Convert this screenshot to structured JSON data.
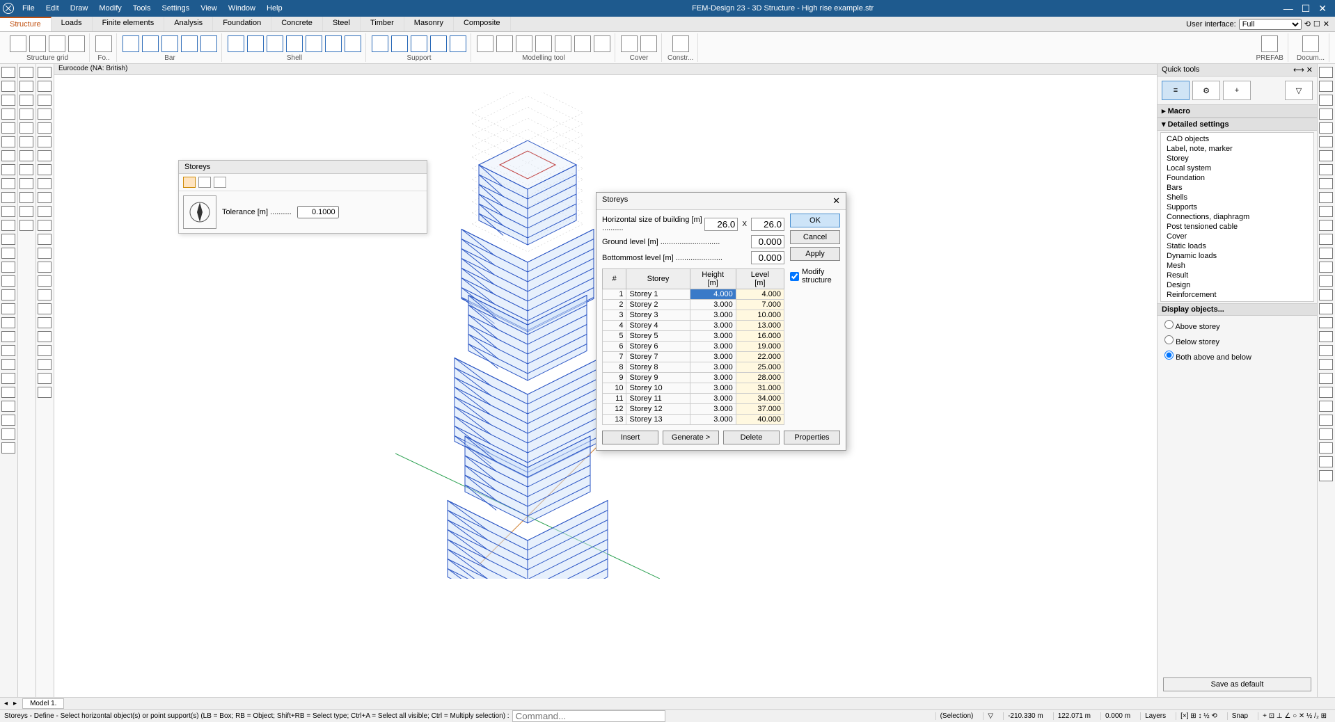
{
  "app": {
    "title": "FEM-Design 23 - 3D Structure - High rise example.str",
    "menus": [
      "File",
      "Edit",
      "Draw",
      "Modify",
      "Tools",
      "Settings",
      "View",
      "Window",
      "Help"
    ],
    "userInterfaceLabel": "User interface:",
    "userInterfaceValue": "Full"
  },
  "tabs": [
    "Structure",
    "Loads",
    "Finite elements",
    "Analysis",
    "Foundation",
    "Concrete",
    "Steel",
    "Timber",
    "Masonry",
    "Composite"
  ],
  "activeTab": "Structure",
  "ribbon": {
    "groups": [
      "Structure grid",
      "Fo..",
      "Bar",
      "Shell",
      "Support",
      "Modelling tool",
      "Cover",
      "Constr..."
    ],
    "rightLabels": [
      "PREFAB",
      "Docum..."
    ]
  },
  "canvas": {
    "codeHeader": "Eurocode (NA: British)"
  },
  "tolerancePanel": {
    "title": "Storeys",
    "label": "Tolerance [m] ..........",
    "value": "0.1000"
  },
  "dialog": {
    "title": "Storeys",
    "hSizeLabel": "Horizontal size of building [m] ..........",
    "hSizeX": "26.0",
    "xLabel": "X",
    "hSizeY": "26.0",
    "groundLabel": "Ground level [m] ............................",
    "groundValue": "0.000",
    "bottomLabel": "Bottommost level [m] ......................",
    "bottomValue": "0.000",
    "okLabel": "OK",
    "cancelLabel": "Cancel",
    "applyLabel": "Apply",
    "modifyLabel": "Modify structure",
    "modifyChecked": true,
    "cols": {
      "num": "#",
      "storey": "Storey",
      "height": "Height\n[m]",
      "level": "Level\n[m]"
    },
    "rows": [
      {
        "n": 1,
        "name": "Storey 1",
        "h": "4.000",
        "l": "4.000",
        "edit": true
      },
      {
        "n": 2,
        "name": "Storey 2",
        "h": "3.000",
        "l": "7.000"
      },
      {
        "n": 3,
        "name": "Storey 3",
        "h": "3.000",
        "l": "10.000"
      },
      {
        "n": 4,
        "name": "Storey 4",
        "h": "3.000",
        "l": "13.000"
      },
      {
        "n": 5,
        "name": "Storey 5",
        "h": "3.000",
        "l": "16.000"
      },
      {
        "n": 6,
        "name": "Storey 6",
        "h": "3.000",
        "l": "19.000"
      },
      {
        "n": 7,
        "name": "Storey 7",
        "h": "3.000",
        "l": "22.000"
      },
      {
        "n": 8,
        "name": "Storey 8",
        "h": "3.000",
        "l": "25.000"
      },
      {
        "n": 9,
        "name": "Storey 9",
        "h": "3.000",
        "l": "28.000"
      },
      {
        "n": 10,
        "name": "Storey 10",
        "h": "3.000",
        "l": "31.000"
      },
      {
        "n": 11,
        "name": "Storey 11",
        "h": "3.000",
        "l": "34.000"
      },
      {
        "n": 12,
        "name": "Storey 12",
        "h": "3.000",
        "l": "37.000"
      },
      {
        "n": 13,
        "name": "Storey 13",
        "h": "3.000",
        "l": "40.000"
      }
    ],
    "insertLabel": "Insert",
    "generateLabel": "Generate >",
    "deleteLabel": "Delete",
    "propsLabel": "Properties"
  },
  "quickTools": {
    "title": "Quick tools",
    "macro": "Macro",
    "detailed": "Detailed settings",
    "list": [
      "CAD objects",
      "Label, note, marker",
      "Storey",
      "Local system",
      "Foundation",
      "Bars",
      "Shells",
      "Supports",
      "Connections, diaphragm",
      "Post tensioned cable",
      "Cover",
      "Static loads",
      "Dynamic loads",
      "Mesh",
      "Result",
      "Design",
      "Reinforcement"
    ],
    "displayLabel": "Display objects...",
    "radios": {
      "above": "Above storey",
      "below": "Below storey",
      "both": "Both above and below"
    },
    "selected": "both",
    "saveDefault": "Save as default"
  },
  "sheetTab": "Model 1.",
  "status": {
    "hint": "Storeys - Define - Select horizontal object(s) or point support(s) (LB = Box; RB = Object; Shift+RB = Select type; Ctrl+A = Select all visible; Ctrl = Multiply selection) :",
    "cmdPlaceholder": "Command...",
    "selection": "(Selection)",
    "coord1": "-210.330 m",
    "coord2": "122.071 m",
    "coord3": "0.000 m",
    "layers": "Layers",
    "snap": "Snap"
  },
  "colors": {
    "titlebar": "#1e5a8e",
    "activeTabAccent": "#c05010",
    "selection": "#3a7ac8",
    "modelLine": "#2a55c4",
    "modelFill": "#cfe2fa",
    "grid": "#c0c0c0",
    "axisGreen": "#2aa050",
    "axisOrange": "#d08030"
  }
}
